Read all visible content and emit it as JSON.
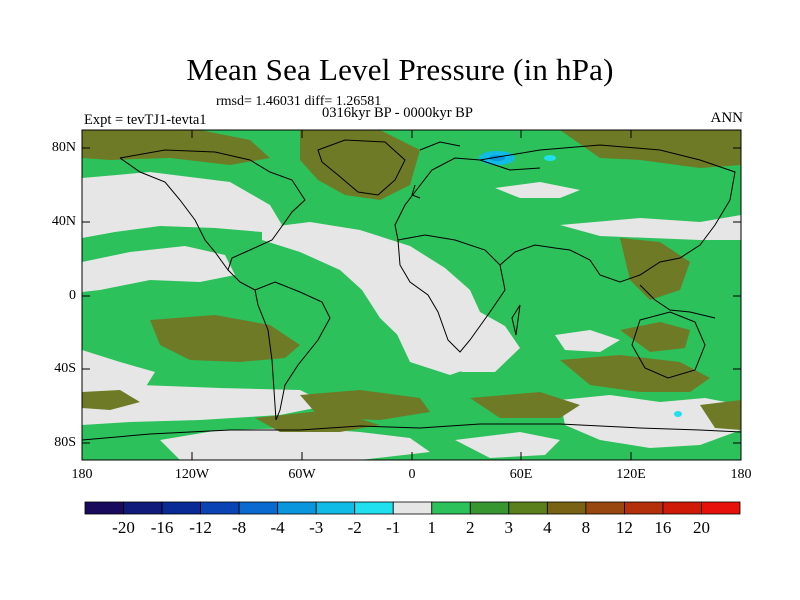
{
  "title": "Mean Sea Level Pressure (in hPa)",
  "stats": "rmsd= 1.46031 diff= 1.26581",
  "period": "0316kyr BP - 0000kyr BP",
  "experiment": "Expt = tevTJ1-tevta1",
  "season": "ANN",
  "y_axis_labels": [
    "80N",
    "40N",
    "0",
    "40S",
    "80S"
  ],
  "x_axis_labels": [
    "180",
    "120W",
    "60W",
    "0",
    "60E",
    "120E",
    "180"
  ],
  "colorbar": {
    "labels": [
      "-20",
      "-16",
      "-12",
      "-8",
      "-4",
      "-3",
      "-2",
      "-1",
      "1",
      "2",
      "3",
      "4",
      "8",
      "12",
      "16",
      "20"
    ],
    "colors": [
      "#1a0a5e",
      "#101a7a",
      "#0a2a96",
      "#0a44b4",
      "#0a6ad0",
      "#0a96dc",
      "#10bce6",
      "#20e0f0",
      "#e6e6e6",
      "#2cc15a",
      "#37962f",
      "#5b7f1c",
      "#7a6214",
      "#98480e",
      "#b4300a",
      "#d01a08",
      "#e8100a"
    ]
  },
  "colors": {
    "green": "#2cc15a",
    "gray": "#e6e6e6",
    "olive": "#6f7a26",
    "blue": "#20c0e8"
  }
}
